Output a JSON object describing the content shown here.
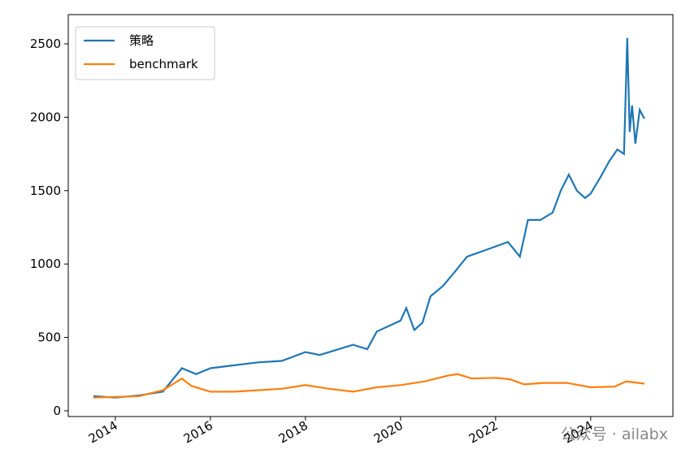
{
  "chart_data": {
    "type": "line",
    "watermark": "公众号 · ailabx",
    "legend": "upper left",
    "xlim": [
      2013.01,
      2025.73
    ],
    "xticks": [
      {
        "value": 2014,
        "label": "2014"
      },
      {
        "value": 2016,
        "label": "2016"
      },
      {
        "value": 2018,
        "label": "2018"
      },
      {
        "value": 2020,
        "label": "2020"
      },
      {
        "value": 2022,
        "label": "2022"
      },
      {
        "value": 2024,
        "label": "2024"
      }
    ],
    "ylim": [
      -39,
      2699
    ],
    "yticks": [
      0,
      500,
      1000,
      1500,
      2000,
      2500
    ],
    "series": [
      {
        "name": "策略",
        "color": "#1f77b4",
        "x": [
          2013.54,
          2014.0,
          2014.5,
          2015.0,
          2015.4,
          2015.7,
          2016.0,
          2016.5,
          2017.0,
          2017.5,
          2018.0,
          2018.3,
          2018.8,
          2019.0,
          2019.3,
          2019.5,
          2020.0,
          2020.12,
          2020.29,
          2020.46,
          2020.63,
          2020.89,
          2021.15,
          2021.4,
          2021.83,
          2022.26,
          2022.51,
          2022.68,
          2022.94,
          2023.2,
          2023.37,
          2023.54,
          2023.71,
          2023.88,
          2024.0,
          2024.22,
          2024.39,
          2024.56,
          2024.7,
          2024.77,
          2024.82,
          2024.87,
          2024.94,
          2025.03,
          2025.13
        ],
        "values": [
          100,
          90,
          105,
          130,
          290,
          250,
          290,
          310,
          330,
          340,
          400,
          380,
          430,
          450,
          420,
          540,
          614,
          700,
          550,
          600,
          780,
          850,
          950,
          1050,
          1100,
          1150,
          1050,
          1300,
          1300,
          1350,
          1500,
          1609,
          1500,
          1450,
          1480,
          1600,
          1700,
          1780,
          1750,
          2540,
          1900,
          2080,
          1820,
          2050,
          1990
        ]
      },
      {
        "name": "benchmark",
        "color": "#ff7f0e",
        "x": [
          2013.54,
          2014.0,
          2014.5,
          2015.0,
          2015.4,
          2015.6,
          2016.0,
          2016.5,
          2017.0,
          2017.5,
          2018.0,
          2018.5,
          2019.0,
          2019.5,
          2020.0,
          2020.5,
          2021.0,
          2021.2,
          2021.5,
          2022.0,
          2022.3,
          2022.6,
          2023.0,
          2023.5,
          2024.0,
          2024.5,
          2024.75,
          2025.13
        ],
        "values": [
          90,
          95,
          100,
          140,
          220,
          170,
          130,
          130,
          140,
          150,
          175,
          150,
          130,
          160,
          175,
          200,
          240,
          250,
          220,
          225,
          215,
          180,
          190,
          190,
          160,
          165,
          200,
          185
        ]
      }
    ]
  }
}
